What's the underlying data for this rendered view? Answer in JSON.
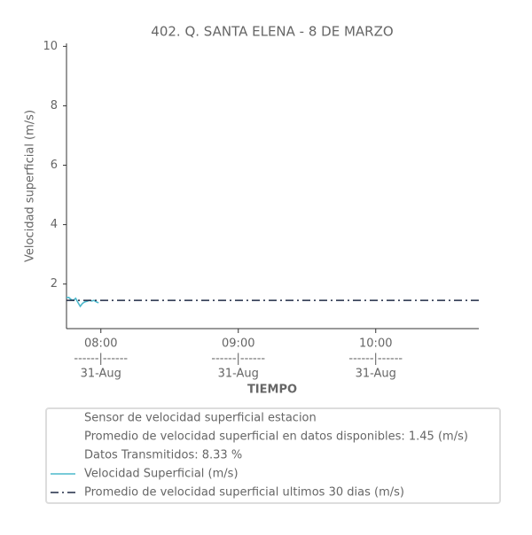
{
  "chart_data": {
    "type": "line",
    "title": "402. Q. SANTA ELENA - 8 DE MARZO",
    "x_label": "TIEMPO",
    "y_label": "Velocidad superficial (m/s)",
    "xlim": [
      "07:45",
      "10:45"
    ],
    "xticks": [
      {
        "value": "08:00",
        "label": [
          "08:00",
          "------|------",
          "31-Aug"
        ]
      },
      {
        "value": "09:00",
        "label": [
          "09:00",
          "------|------",
          "31-Aug"
        ]
      },
      {
        "value": "10:00",
        "label": [
          "10:00",
          "------|------",
          "31-Aug"
        ]
      }
    ],
    "ylim": [
      0.5,
      10.1
    ],
    "yticks": [
      2,
      4,
      6,
      8,
      10
    ],
    "legend_notes": [
      "Sensor de velocidad superficial estacion",
      "Promedio de velocidad superficial en datos disponibles: 1.45 (m/s)",
      "Datos Transmitidos: 8.33 %"
    ],
    "series": [
      {
        "name": "Velocidad Superficial (m/s)",
        "color": "#4cb8cc",
        "dash": "solid",
        "x": [
          "07:45",
          "07:46",
          "07:47",
          "07:48",
          "07:49",
          "07:50",
          "07:51",
          "07:52",
          "07:53",
          "07:54",
          "07:55",
          "07:56",
          "07:57",
          "07:58",
          "07:59"
        ],
        "values": [
          1.55,
          1.55,
          1.48,
          1.45,
          1.52,
          1.38,
          1.25,
          1.35,
          1.4,
          1.42,
          1.45,
          1.43,
          1.45,
          1.4,
          1.37
        ]
      },
      {
        "name": "Promedio de velocidad superficial ultimos 30 dias (m/s)",
        "color": "#1f2a44",
        "dash": "dashdot",
        "x": [
          "07:45",
          "10:45"
        ],
        "values": [
          1.45,
          1.45
        ]
      }
    ]
  }
}
